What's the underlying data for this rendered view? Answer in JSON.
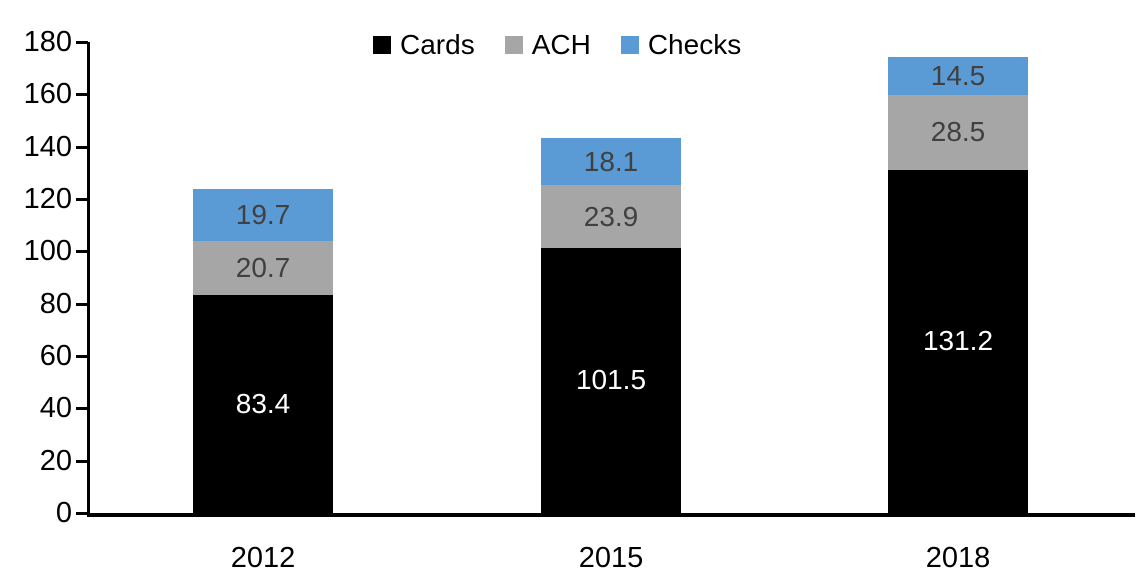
{
  "chart_data": {
    "type": "bar",
    "stacked": true,
    "title": "",
    "categories": [
      "2012",
      "2015",
      "2018"
    ],
    "series": [
      {
        "name": "Cards",
        "color": "#000000",
        "label_color": "#FFFFFF",
        "values": [
          83.4,
          101.5,
          131.2
        ]
      },
      {
        "name": "ACH",
        "color": "#A6A6A6",
        "label_color": "#404040",
        "values": [
          20.7,
          23.9,
          28.5
        ]
      },
      {
        "name": "Checks",
        "color": "#5B9BD5",
        "label_color": "#404040",
        "values": [
          19.7,
          18.1,
          14.5
        ]
      }
    ],
    "data_labels_visible": true,
    "xlabel": "",
    "ylabel": "",
    "ylim": [
      0,
      180
    ],
    "yticks": [
      0,
      20,
      40,
      60,
      80,
      100,
      120,
      140,
      160,
      180
    ],
    "grid": false,
    "legend_position": "top-center",
    "axis_color": "#000000"
  }
}
